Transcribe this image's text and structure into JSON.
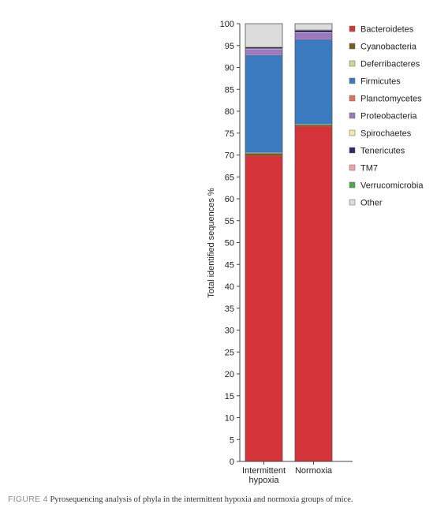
{
  "chart_data": {
    "type": "bar",
    "stacked": true,
    "title": "",
    "xlabel": "",
    "ylabel": "Total identified sequences %",
    "ylim": [
      0,
      100
    ],
    "yticks": [
      0,
      5,
      10,
      15,
      20,
      25,
      30,
      35,
      40,
      45,
      50,
      55,
      60,
      65,
      70,
      75,
      80,
      85,
      90,
      95,
      100
    ],
    "grid": false,
    "legend_position": "right",
    "categories": [
      {
        "lines": [
          "Intermittent",
          "hypoxia"
        ]
      },
      {
        "lines": [
          "Normoxia"
        ]
      }
    ],
    "series": [
      {
        "name": "Bacteroidetes",
        "color": "#d43339",
        "values": [
          69.8,
          76.5
        ]
      },
      {
        "name": "Cyanobacteria",
        "color": "#7a5a1e",
        "values": [
          0.6,
          0.4
        ]
      },
      {
        "name": "Deferribacteres",
        "color": "#c8d89a",
        "values": [
          0.1,
          0.1
        ]
      },
      {
        "name": "Firmicutes",
        "color": "#3a7bc0",
        "values": [
          22.3,
          19.4
        ]
      },
      {
        "name": "Planctomycetes",
        "color": "#e0735a",
        "values": [
          0.1,
          0.1
        ]
      },
      {
        "name": "Proteobacteria",
        "color": "#9b79c1",
        "values": [
          1.3,
          1.4
        ]
      },
      {
        "name": "Spirochaetes",
        "color": "#f3e6a8",
        "values": [
          0.1,
          0.1
        ]
      },
      {
        "name": "Tenericutes",
        "color": "#2f2a6b",
        "values": [
          0.3,
          0.5
        ]
      },
      {
        "name": "TM7",
        "color": "#f0a3aa",
        "values": [
          0.1,
          0.1
        ]
      },
      {
        "name": "Verrucomicrobia",
        "color": "#4fa64a",
        "values": [
          0.1,
          0.1
        ]
      },
      {
        "name": "Other",
        "color": "#dcdcdc",
        "values": [
          5.2,
          1.3
        ]
      }
    ]
  },
  "caption": {
    "figure_label": "FIGURE 4",
    "text": "Pyrosequencing analysis of phyla in the intermittent hypoxia and normoxia groups of mice."
  }
}
